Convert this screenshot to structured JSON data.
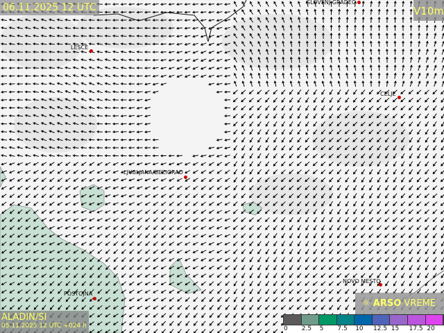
{
  "header": {
    "valid_time": "06.11.2025 12 UTC",
    "parameter": "V10m"
  },
  "model": {
    "name": "ALADIN/SI",
    "run": "05.11.2025 12 UTC +024 h"
  },
  "brand": {
    "bold": "ARSO",
    "light": " VREME",
    "icon": "sun-icon"
  },
  "legend": {
    "ticks": [
      "0",
      "2.5",
      "5",
      "7.5",
      "10",
      "12.5",
      "15",
      "17.5",
      "20"
    ],
    "colors": [
      "#5a5a5a",
      "#6f9c8a",
      "#009966",
      "#008488",
      "#0066aa",
      "#4f63bb",
      "#9966cc",
      "#bb55dd",
      "#dd44ee"
    ]
  },
  "cities": [
    {
      "name": "LESCE"
    },
    {
      "name": "CELJE"
    },
    {
      "name": "LJUBLJANA/BEZIGRAD"
    },
    {
      "name": "SLOVENJ GRADEC"
    },
    {
      "name": "NOVO MESTO"
    },
    {
      "name": "POSTOJNA"
    }
  ],
  "colors": {
    "sea": "#c8e0d4",
    "land": "#f4f4f4",
    "city_dot": "#cc0000"
  }
}
